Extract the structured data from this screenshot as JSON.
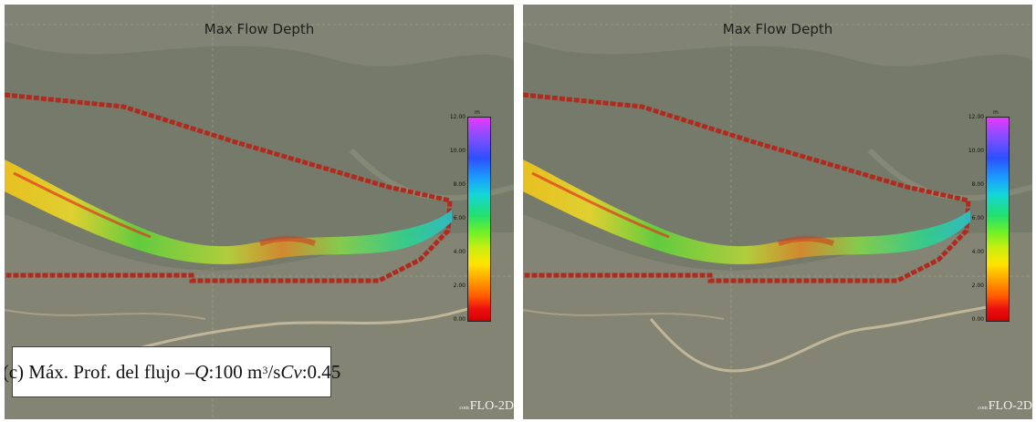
{
  "panels": [
    {
      "title": "Max Flow Depth",
      "legend": {
        "unit": "m",
        "ticks": [
          "12.00",
          "10.00",
          "8.00",
          "6.00",
          "4.00",
          "2.00",
          "0.00"
        ],
        "colors": [
          "#e838ff",
          "#2c50ff",
          "#15d6d6",
          "#22e070",
          "#ffe400",
          "#ff5a00",
          "#d40000"
        ]
      },
      "watermark": {
        "prefix": "com",
        "label": "FLO-2D"
      },
      "caption": {
        "prefix": "(c) Máx. Prof. del flujo – ",
        "q_symbol": "Q",
        "q_value": ":100 m",
        "q_unit_sup": "3",
        "q_unit_suffix": "/s ",
        "cv_symbol": "Cv",
        "cv_value": ":0.45"
      }
    },
    {
      "title": "Max Flow Depth",
      "legend": {
        "unit": "m",
        "ticks": [
          "12.00",
          "10.00",
          "8.00",
          "6.00",
          "4.00",
          "2.00",
          "0.00"
        ],
        "colors": [
          "#e838ff",
          "#2c50ff",
          "#15d6d6",
          "#22e070",
          "#ffe400",
          "#ff5a00",
          "#d40000"
        ]
      },
      "watermark": {
        "prefix": "com",
        "label": "FLO-2D"
      }
    }
  ],
  "colors": {
    "boundary": "#b02a1e",
    "gridline": "#c8c87a"
  }
}
